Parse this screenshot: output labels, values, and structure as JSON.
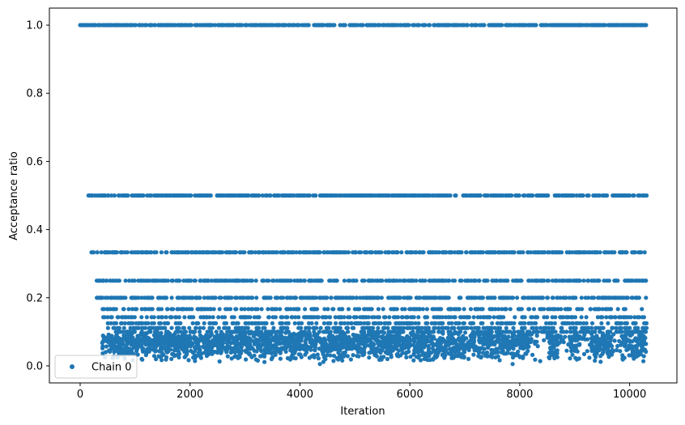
{
  "chart_data": {
    "type": "scatter",
    "title": "",
    "xlabel": "Iteration",
    "ylabel": "Acceptance ratio",
    "xlim": [
      -560,
      10860
    ],
    "ylim": [
      -0.05,
      1.05
    ],
    "xticks": [
      0,
      2000,
      4000,
      6000,
      8000,
      10000
    ],
    "xtick_labels": [
      "0",
      "2000",
      "4000",
      "6000",
      "8000",
      "10000"
    ],
    "yticks": [
      0.0,
      0.2,
      0.4,
      0.6,
      0.8,
      1.0
    ],
    "ytick_labels": [
      "0.0",
      "0.2",
      "0.4",
      "0.6",
      "0.8",
      "1.0"
    ],
    "grid": false,
    "legend_position": "lower-left",
    "series": [
      {
        "name": "Chain 0",
        "color": "#1f77b4",
        "marker": "circle",
        "x_range": [
          0,
          10300
        ],
        "discrete_levels": [
          {
            "value": 1.0,
            "x_start": 0
          },
          {
            "value": 0.5,
            "x_start": 150
          },
          {
            "value": 0.3333,
            "x_start": 200
          },
          {
            "value": 0.25,
            "x_start": 300
          },
          {
            "value": 0.2,
            "x_start": 300
          },
          {
            "value": 0.1667,
            "x_start": 400
          },
          {
            "value": 0.1429,
            "x_start": 400
          },
          {
            "value": 0.125,
            "x_start": 500
          },
          {
            "value": 0.1111,
            "x_start": 500
          },
          {
            "value": 0.1,
            "x_start": 600
          }
        ],
        "dense_low_region": {
          "y_range": [
            0.0,
            0.1
          ],
          "x_range": [
            400,
            10300
          ]
        }
      }
    ]
  }
}
